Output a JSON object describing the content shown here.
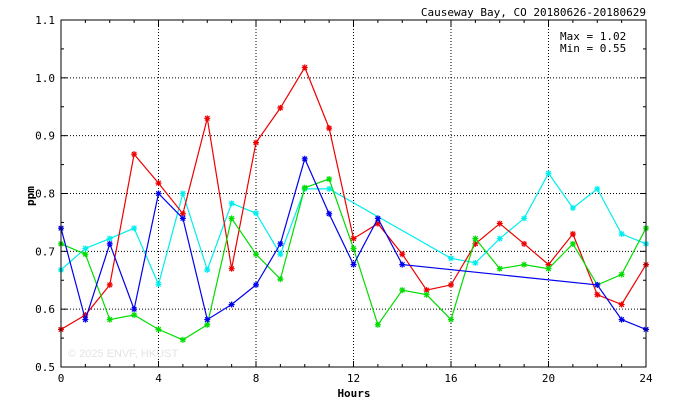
{
  "chart_data": {
    "type": "line",
    "title": "Causeway Bay, CO 20180626-20180629",
    "xlabel": "Hours",
    "ylabel": "ppm",
    "xlim": [
      0,
      24
    ],
    "ylim": [
      0.5,
      1.1
    ],
    "x_ticks": [
      0,
      4,
      8,
      12,
      16,
      20,
      24
    ],
    "y_ticks": [
      0.5,
      0.6,
      0.7,
      0.8,
      0.9,
      1.0,
      1.1
    ],
    "grid": true,
    "annotations": [
      "Max = 1.02",
      "Min = 0.55"
    ],
    "watermark": "© 2025  ENVF, HKUST",
    "series": [
      {
        "color": "#00eeee",
        "points": [
          [
            0,
            0.668
          ],
          [
            1,
            0.705
          ],
          [
            2,
            0.722
          ],
          [
            3,
            0.74
          ],
          [
            4,
            0.643
          ],
          [
            5,
            0.8
          ],
          [
            6,
            0.668
          ],
          [
            7,
            0.783
          ],
          [
            8,
            0.766
          ],
          [
            9,
            0.695
          ],
          [
            10,
            0.808
          ],
          [
            11,
            0.808
          ],
          [
            16,
            0.688
          ],
          [
            17,
            0.68
          ],
          [
            18,
            0.722
          ],
          [
            19,
            0.757
          ],
          [
            20,
            0.835
          ],
          [
            21,
            0.775
          ],
          [
            22,
            0.808
          ],
          [
            23,
            0.73
          ],
          [
            24,
            0.713
          ]
        ]
      },
      {
        "color": "#ee0000",
        "points": [
          [
            0,
            0.565
          ],
          [
            1,
            0.59
          ],
          [
            2,
            0.642
          ],
          [
            3,
            0.868
          ],
          [
            4,
            0.818
          ],
          [
            5,
            0.765
          ],
          [
            6,
            0.93
          ],
          [
            7,
            0.67
          ],
          [
            8,
            0.888
          ],
          [
            9,
            0.948
          ],
          [
            10,
            1.018
          ],
          [
            11,
            0.913
          ],
          [
            12,
            0.722
          ],
          [
            13,
            0.748
          ],
          [
            14,
            0.695
          ],
          [
            15,
            0.633
          ],
          [
            16,
            0.642
          ],
          [
            17,
            0.713
          ],
          [
            18,
            0.748
          ],
          [
            19,
            0.713
          ],
          [
            20,
            0.677
          ],
          [
            21,
            0.73
          ],
          [
            22,
            0.625
          ],
          [
            23,
            0.608
          ],
          [
            24,
            0.677
          ]
        ]
      },
      {
        "color": "#00dd00",
        "points": [
          [
            0,
            0.713
          ],
          [
            1,
            0.695
          ],
          [
            2,
            0.582
          ],
          [
            3,
            0.59
          ],
          [
            4,
            0.565
          ],
          [
            5,
            0.547
          ],
          [
            6,
            0.573
          ],
          [
            7,
            0.757
          ],
          [
            8,
            0.695
          ],
          [
            9,
            0.652
          ],
          [
            10,
            0.81
          ],
          [
            11,
            0.825
          ],
          [
            12,
            0.705
          ],
          [
            13,
            0.573
          ],
          [
            14,
            0.633
          ],
          [
            15,
            0.625
          ],
          [
            16,
            0.582
          ],
          [
            17,
            0.722
          ],
          [
            18,
            0.67
          ],
          [
            19,
            0.677
          ],
          [
            20,
            0.67
          ],
          [
            21,
            0.713
          ],
          [
            22,
            0.642
          ],
          [
            23,
            0.66
          ],
          [
            24,
            0.74
          ]
        ]
      },
      {
        "color": "#0000ee",
        "points": [
          [
            0,
            0.74
          ],
          [
            1,
            0.582
          ],
          [
            2,
            0.713
          ],
          [
            3,
            0.6
          ],
          [
            4,
            0.8
          ],
          [
            5,
            0.757
          ],
          [
            6,
            0.582
          ],
          [
            7,
            0.608
          ],
          [
            8,
            0.642
          ],
          [
            9,
            0.713
          ],
          [
            10,
            0.86
          ],
          [
            11,
            0.765
          ],
          [
            12,
            0.677
          ],
          [
            13,
            0.757
          ],
          [
            14,
            0.677
          ],
          [
            22,
            0.642
          ],
          [
            23,
            0.582
          ],
          [
            24,
            0.565
          ]
        ]
      }
    ]
  }
}
